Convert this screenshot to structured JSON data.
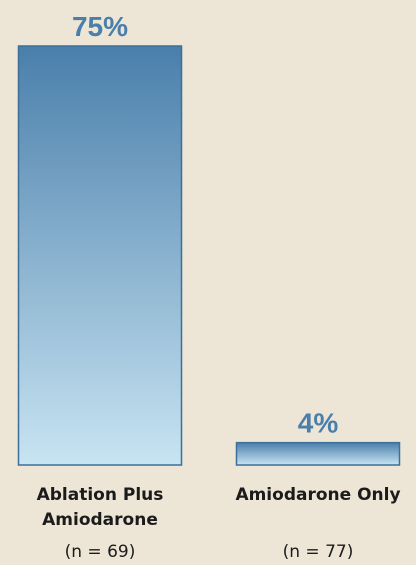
{
  "chart_data": {
    "type": "bar",
    "categories": [
      "Ablation Plus Amiodarone",
      "Amiodarone Only"
    ],
    "category_lines": [
      [
        "Ablation Plus",
        "Amiodarone"
      ],
      [
        "Amiodarone Only"
      ]
    ],
    "sample_sizes": [
      "(n = 69)",
      "(n = 77)"
    ],
    "values": [
      75,
      4
    ],
    "value_labels": [
      "75%",
      "4%"
    ],
    "unit": "%",
    "ylim": [
      0,
      75
    ],
    "grid": false,
    "legend": "none",
    "colors": {
      "bar_top": "#4a7fab",
      "bar_bottom": "#c8e4f2",
      "bar_stroke": "#3d6f99",
      "value_text": "#4a7fab",
      "background": "#ede6d6"
    }
  }
}
